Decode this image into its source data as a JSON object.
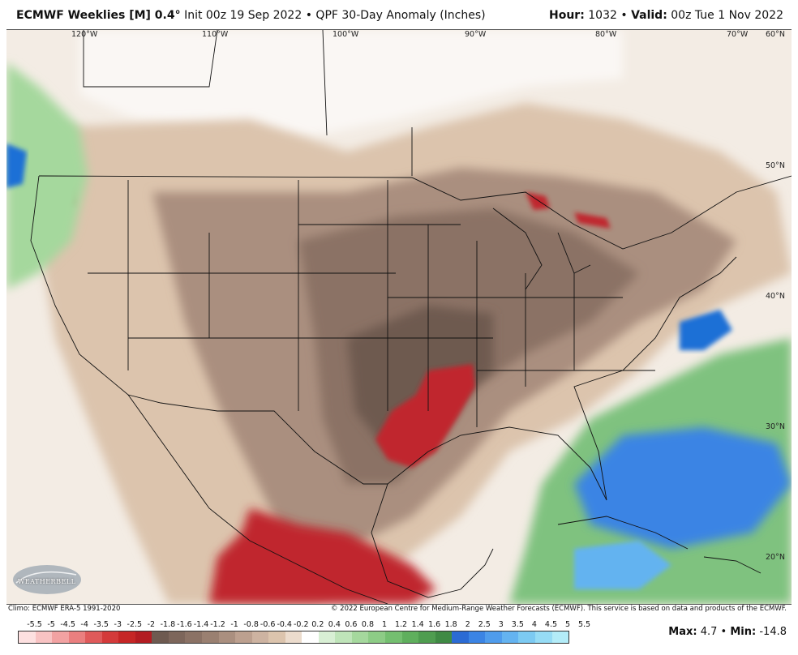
{
  "header": {
    "model": "ECMWF Weeklies [M] 0.4",
    "deg": "°",
    "init": "Init 00z 19 Sep 2022",
    "sep": "•",
    "product": "QPF 30-Day Anomaly (Inches)",
    "hour_label": "Hour:",
    "hour_value": "1032",
    "valid_label": "Valid:",
    "valid_value": "00z Tue 1 Nov 2022"
  },
  "map": {
    "lon_labels": [
      "120°W",
      "110°W",
      "100°W",
      "90°W",
      "80°W",
      "70°W",
      "60°N"
    ],
    "lat_labels": [
      "50°N",
      "40°N",
      "30°N",
      "20°N"
    ],
    "logo_text": "WEATHERBELL",
    "colors": {
      "land_tan": "#dcc4ad",
      "dry_brown": "#8b7265",
      "very_dry": "#6e5a50",
      "red": "#c0282d",
      "green": "#7fc27f",
      "blue": "#1f6fd6"
    }
  },
  "footer": {
    "climo": "Climo: ECMWF ERA-5 1991-2020",
    "copyright": "© 2022 European Centre for Medium-Range Weather Forecasts (ECMWF). This service is based on data and products of the ECMWF."
  },
  "colorbar": {
    "labels": [
      "-5.5",
      "-5",
      "-4.5",
      "-4",
      "-3.5",
      "-3",
      "-2.5",
      "-2",
      "-1.8",
      "-1.6",
      "-1.4",
      "-1.2",
      "-1",
      "-0.8",
      "-0.6",
      "-0.4",
      "-0.2",
      "0.2",
      "0.4",
      "0.6",
      "0.8",
      "1",
      "1.2",
      "1.4",
      "1.6",
      "1.8",
      "2",
      "2.5",
      "3",
      "3.5",
      "4",
      "4.5",
      "5",
      "5.5"
    ],
    "colors": [
      "#fde0e0",
      "#f8c3c3",
      "#f2a2a2",
      "#ea7f7f",
      "#df5a5a",
      "#d43a3a",
      "#c62626",
      "#b31c22",
      "#6e5a50",
      "#7d665b",
      "#8b7265",
      "#9a8071",
      "#aa8f7f",
      "#bca08f",
      "#cdb3a1",
      "#dcc4ad",
      "#ecdccd",
      "#ffffff",
      "#d8efd4",
      "#bfe4b9",
      "#a5d89d",
      "#8dcc86",
      "#74bf70",
      "#5faf5d",
      "#4f9d50",
      "#3f8a44",
      "#2b6bd4",
      "#3b84e4",
      "#4f9cec",
      "#64b3f0",
      "#7ccaf2",
      "#96dcf5",
      "#b3ecf8"
    ]
  },
  "stats": {
    "max_label": "Max:",
    "max_value": "4.7",
    "sep": "•",
    "min_label": "Min:",
    "min_value": "-14.8"
  }
}
